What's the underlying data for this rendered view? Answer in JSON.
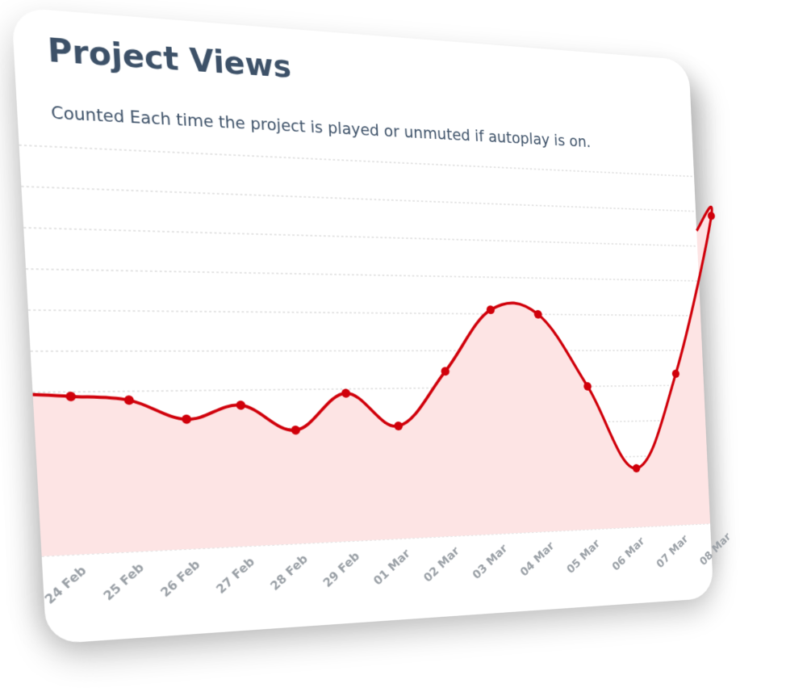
{
  "card": {
    "title": "Project Views",
    "subtitle": "Counted Each time the project is played or unmuted if autoplay is on."
  },
  "colors": {
    "line": "#d0000a",
    "fill": "#fde4e4",
    "grid": "#c8c8c8",
    "title": "#3d5168",
    "tick": "#9aa0a6"
  },
  "chart_data": {
    "type": "area",
    "title": "Project Views",
    "subtitle": "Counted Each time the project is played or unmuted if autoplay is on.",
    "xlabel": "",
    "ylabel": "",
    "categories": [
      "24 Feb",
      "25 Feb",
      "26 Feb",
      "27 Feb",
      "28 Feb",
      "29 Feb",
      "01 Mar",
      "02 Mar",
      "03 Mar",
      "04 Mar",
      "05 Mar",
      "06 Mar",
      "07 Mar",
      "08 Mar"
    ],
    "values": [
      40,
      38,
      29,
      35,
      23,
      40,
      24,
      50,
      80,
      78,
      42,
      0,
      48,
      130
    ],
    "ylim": [
      -30,
      150
    ],
    "grid": true,
    "gridlines": 10,
    "legend": "none"
  }
}
